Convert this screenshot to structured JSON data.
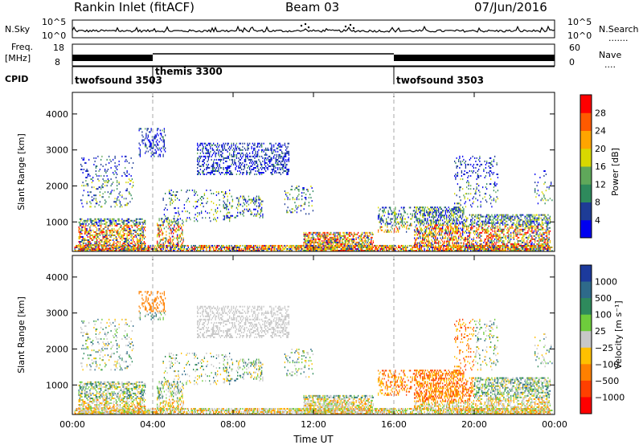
{
  "header": {
    "station": "Rankin Inlet (fitACF)",
    "beam": "Beam 03",
    "date": "07/Jun/2016"
  },
  "sky_panel": {
    "left_label": "N.Sky",
    "right_label": "N.Search",
    "right_dots": ".......",
    "ticks": [
      "10^5",
      "10^0"
    ]
  },
  "freq_panel": {
    "left_label_1": "Freq.",
    "left_label_2": "[MHz]",
    "left_ticks": [
      "18",
      "8"
    ],
    "right_label": "Nave",
    "right_dots": "....",
    "right_ticks": [
      "60",
      "0"
    ]
  },
  "cpid_panel": {
    "label": "CPID",
    "segments": [
      {
        "name": "twofsound 3503",
        "start_hr": 0,
        "end_hr": 4
      },
      {
        "name": "themis 3300",
        "start_hr": 4,
        "end_hr": 16
      },
      {
        "name": "twofsound 3503",
        "start_hr": 16,
        "end_hr": 24
      }
    ]
  },
  "chart_data": [
    {
      "type": "heatmap",
      "name": "power",
      "ylabel": "Slant Range [km]",
      "y_ticks": [
        1000,
        2000,
        3000,
        4000
      ],
      "ylim": [
        180,
        4600
      ],
      "xlim": [
        0,
        24
      ],
      "x_ticks_hr": [
        0,
        4,
        8,
        12,
        16,
        20,
        24
      ],
      "colorbar_label": "Power [dB]",
      "colorbar_ticks": [
        4,
        8,
        12,
        16,
        20,
        24,
        28
      ],
      "colorbar_colors": [
        "#0000f0",
        "#1e3c96",
        "#2e8a5c",
        "#5fa85a",
        "#d8d800",
        "#ffa500",
        "#ff5a00",
        "#ff0000"
      ]
    },
    {
      "type": "heatmap",
      "name": "velocity",
      "ylabel": "Slant Range [km]",
      "y_ticks": [
        1000,
        2000,
        3000,
        4000
      ],
      "ylim": [
        180,
        4600
      ],
      "xlim": [
        0,
        24
      ],
      "x_ticks_hr": [
        0,
        4,
        8,
        12,
        16,
        20,
        24
      ],
      "xlabel": "Time UT",
      "x_tick_labels": [
        "00:00",
        "04:00",
        "08:00",
        "12:00",
        "16:00",
        "20:00",
        "00:00"
      ],
      "colorbar_label": "Velocity [m s⁻¹]",
      "colorbar_ticks": [
        "1000",
        "500",
        "100",
        "25",
        "−25",
        "−100",
        "−500",
        "−1000"
      ],
      "colorbar_colors": [
        "#1c3a9c",
        "#2e6a8a",
        "#2e8a5c",
        "#6ecc3c",
        "#c8c8c8",
        "#ffc000",
        "#ff8000",
        "#ff4000",
        "#ff0000"
      ]
    }
  ]
}
